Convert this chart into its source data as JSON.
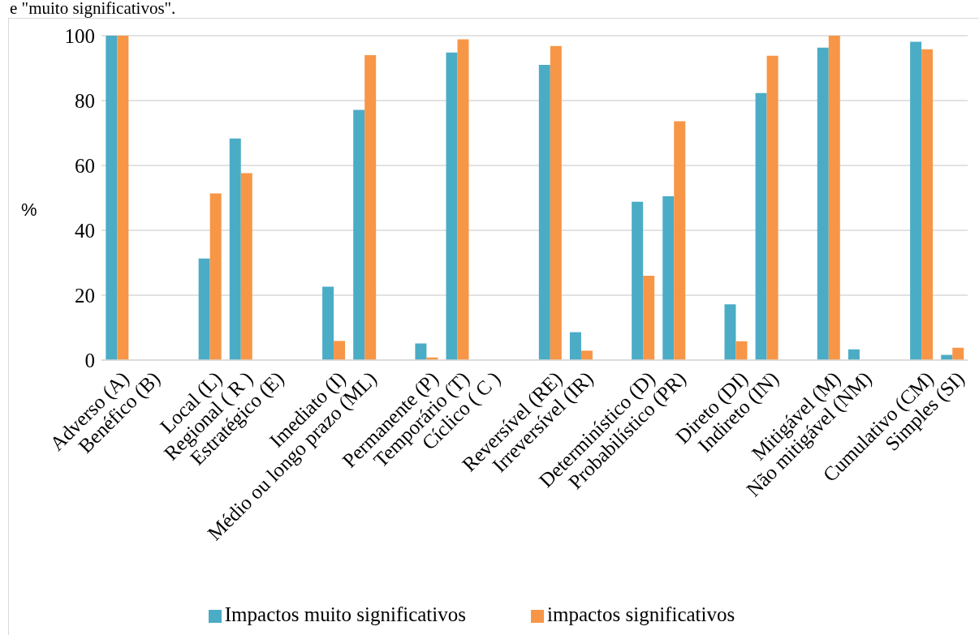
{
  "chart_data": {
    "type": "bar",
    "ylabel": "%",
    "annotations": [
      "e \"muito significativos\"."
    ],
    "categories": [
      "Adverso (A)",
      "Benéfico (B)",
      null,
      "Local (L)",
      "Regional ( R )",
      "Estratégico (E)",
      null,
      "Imediato (I)",
      "Médio ou longo prazo (ML)",
      null,
      "Permanente (P)",
      "Temporário (T)",
      "Cíclico ( C )",
      null,
      "Reversível (RE)",
      "Irreversível (IR)",
      null,
      "Determinístico (D)",
      "Probabilístico (PR)",
      null,
      "Direto (DI)",
      "Indireto (IN)",
      null,
      "Mitigável (M)",
      "Não mitigável (NM)",
      null,
      "Cumulativo (CM)",
      "Simples (SI)"
    ],
    "series": [
      {
        "name": "Impactos muito significativos",
        "color": "#4bacc6",
        "values": [
          100,
          0,
          null,
          31.3,
          68.3,
          0,
          null,
          22.6,
          77.1,
          null,
          5.1,
          94.8,
          0,
          null,
          91.0,
          8.6,
          null,
          48.8,
          50.5,
          null,
          17.2,
          82.3,
          null,
          96.3,
          3.3,
          null,
          98.1,
          1.6
        ]
      },
      {
        "name": "impactos significativos",
        "color": "#f79646",
        "values": [
          100,
          0,
          null,
          51.4,
          57.6,
          0,
          null,
          5.9,
          94.0,
          null,
          0.8,
          98.9,
          0,
          null,
          96.8,
          2.9,
          null,
          26.0,
          73.6,
          null,
          5.8,
          93.8,
          null,
          100,
          0,
          null,
          95.8,
          3.8
        ]
      }
    ],
    "ylim": [
      0,
      100
    ],
    "yticks": [
      0,
      20,
      40,
      60,
      80,
      100
    ],
    "grid": "y",
    "legend": "bottom"
  }
}
